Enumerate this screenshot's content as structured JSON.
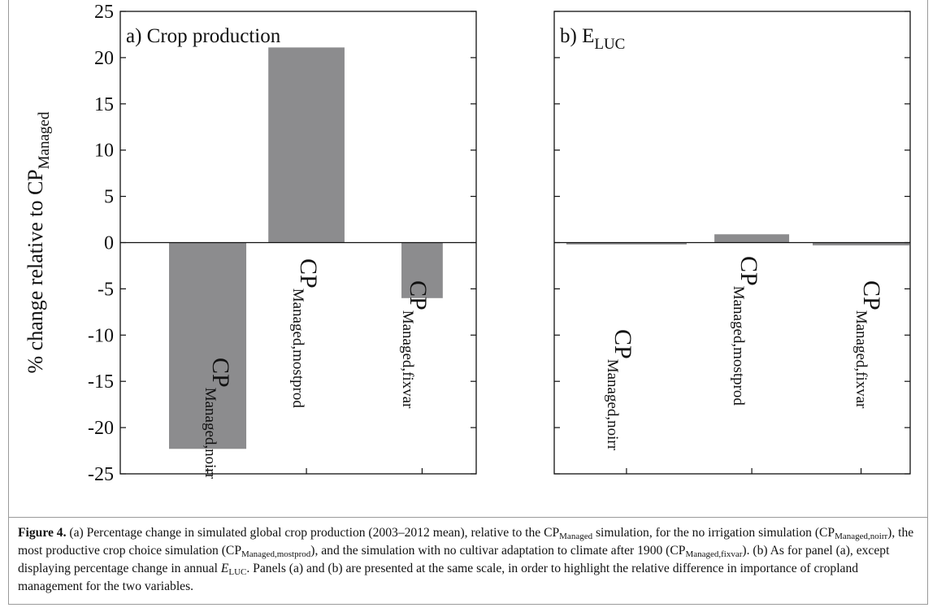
{
  "chart_data": [
    {
      "type": "bar",
      "title": "a) Crop production",
      "ylabel": "% change relative to CP",
      "ylabel_sub": "Managed",
      "categories": [
        {
          "text": "CP",
          "sub": "Managed,noirr"
        },
        {
          "text": "CP",
          "sub": "Managed,mostprod"
        },
        {
          "text": "CP",
          "sub": "Managed,fixvar"
        }
      ],
      "values": [
        -22.3,
        21.1,
        -6.0
      ],
      "color": "#8c8c8e",
      "ylim": [
        -25,
        25
      ],
      "yticks": [
        -25,
        -20,
        -15,
        -10,
        -5,
        0,
        5,
        10,
        15,
        20,
        25
      ],
      "show_tick_labels": true
    },
    {
      "type": "bar",
      "title": "b) E",
      "title_sub": "LUC",
      "categories": [
        {
          "text": "CP",
          "sub": "Managed,noirr"
        },
        {
          "text": "CP",
          "sub": "Managed,mostprod"
        },
        {
          "text": "CP",
          "sub": "Managed,fixvar"
        }
      ],
      "values": [
        -0.2,
        0.9,
        -0.3
      ],
      "color": "#8c8c8e",
      "ylim": [
        -25,
        25
      ],
      "yticks": [
        -25,
        -20,
        -15,
        -10,
        -5,
        0,
        5,
        10,
        15,
        20,
        25
      ],
      "show_tick_labels": false
    }
  ],
  "caption": [
    {
      "text": "Figure 4.",
      "style": "bold"
    },
    {
      "text": " (a) Percentage change in simulated global crop production (2003–2012 mean), relative to the CP"
    },
    {
      "text": "Managed",
      "style": "sub"
    },
    {
      "text": " simulation, for the no irrigation simulation (CP"
    },
    {
      "text": "Managed,noirr",
      "style": "sub"
    },
    {
      "text": "), the most productive crop choice simulation (CP"
    },
    {
      "text": "Managed,mostprod",
      "style": "sub"
    },
    {
      "text": "), and the simulation with no cultivar adaptation to climate after 1900 (CP"
    },
    {
      "text": "Managed,fixvar",
      "style": "sub"
    },
    {
      "text": "). (b) As for panel (a), except displaying percentage change in annual "
    },
    {
      "text": "E",
      "style": "italic"
    },
    {
      "text": "LUC",
      "style": "sub"
    },
    {
      "text": ". Panels (a) and (b) are presented at the same scale, in order to highlight the relative difference in importance of cropland management for the two variables."
    }
  ]
}
